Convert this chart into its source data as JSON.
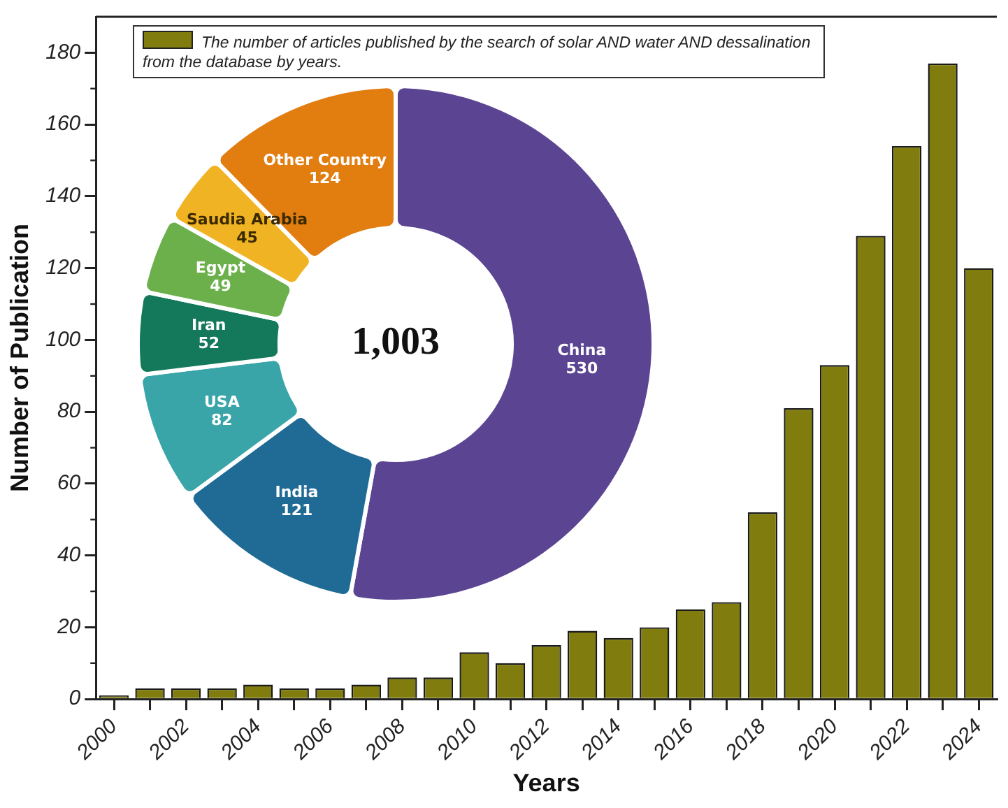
{
  "chart_data": [
    {
      "type": "bar",
      "xlabel": "Years",
      "ylabel": "Number of Publication",
      "categories": [
        "2000",
        null,
        "2002",
        null,
        "2004",
        null,
        "2006",
        null,
        "2008",
        null,
        "2010",
        null,
        "2012",
        null,
        "2014",
        null,
        "2016",
        null,
        "2018",
        null,
        "2020",
        null,
        "2022",
        null,
        "2024"
      ],
      "series": [
        {
          "name": "The number of articles published by the search of solar AND water AND dessalination from the database by years.",
          "color": "#807c0e",
          "values": [
            1,
            3,
            3,
            3,
            4,
            3,
            3,
            4,
            6,
            6,
            13,
            10,
            15,
            19,
            17,
            20,
            25,
            27,
            52,
            81,
            93,
            129,
            154,
            177,
            120
          ]
        }
      ],
      "ylim": [
        0,
        190
      ],
      "yticks": [
        0,
        20,
        40,
        60,
        80,
        100,
        120,
        140,
        160,
        180
      ],
      "grid": false,
      "legend": "top"
    },
    {
      "type": "donut",
      "categories": [
        "China",
        "India",
        "USA",
        "Iran",
        "Egypt",
        "Saudia Arabia",
        "Other Country"
      ],
      "values": [
        530,
        121,
        82,
        52,
        49,
        45,
        124
      ],
      "colors": [
        "#5b4592",
        "#1f6b95",
        "#3aa5a8",
        "#13795a",
        "#6bb04b",
        "#f0b323",
        "#e27d10"
      ],
      "data_labels": true,
      "annotations": [
        "1,003"
      ]
    }
  ]
}
